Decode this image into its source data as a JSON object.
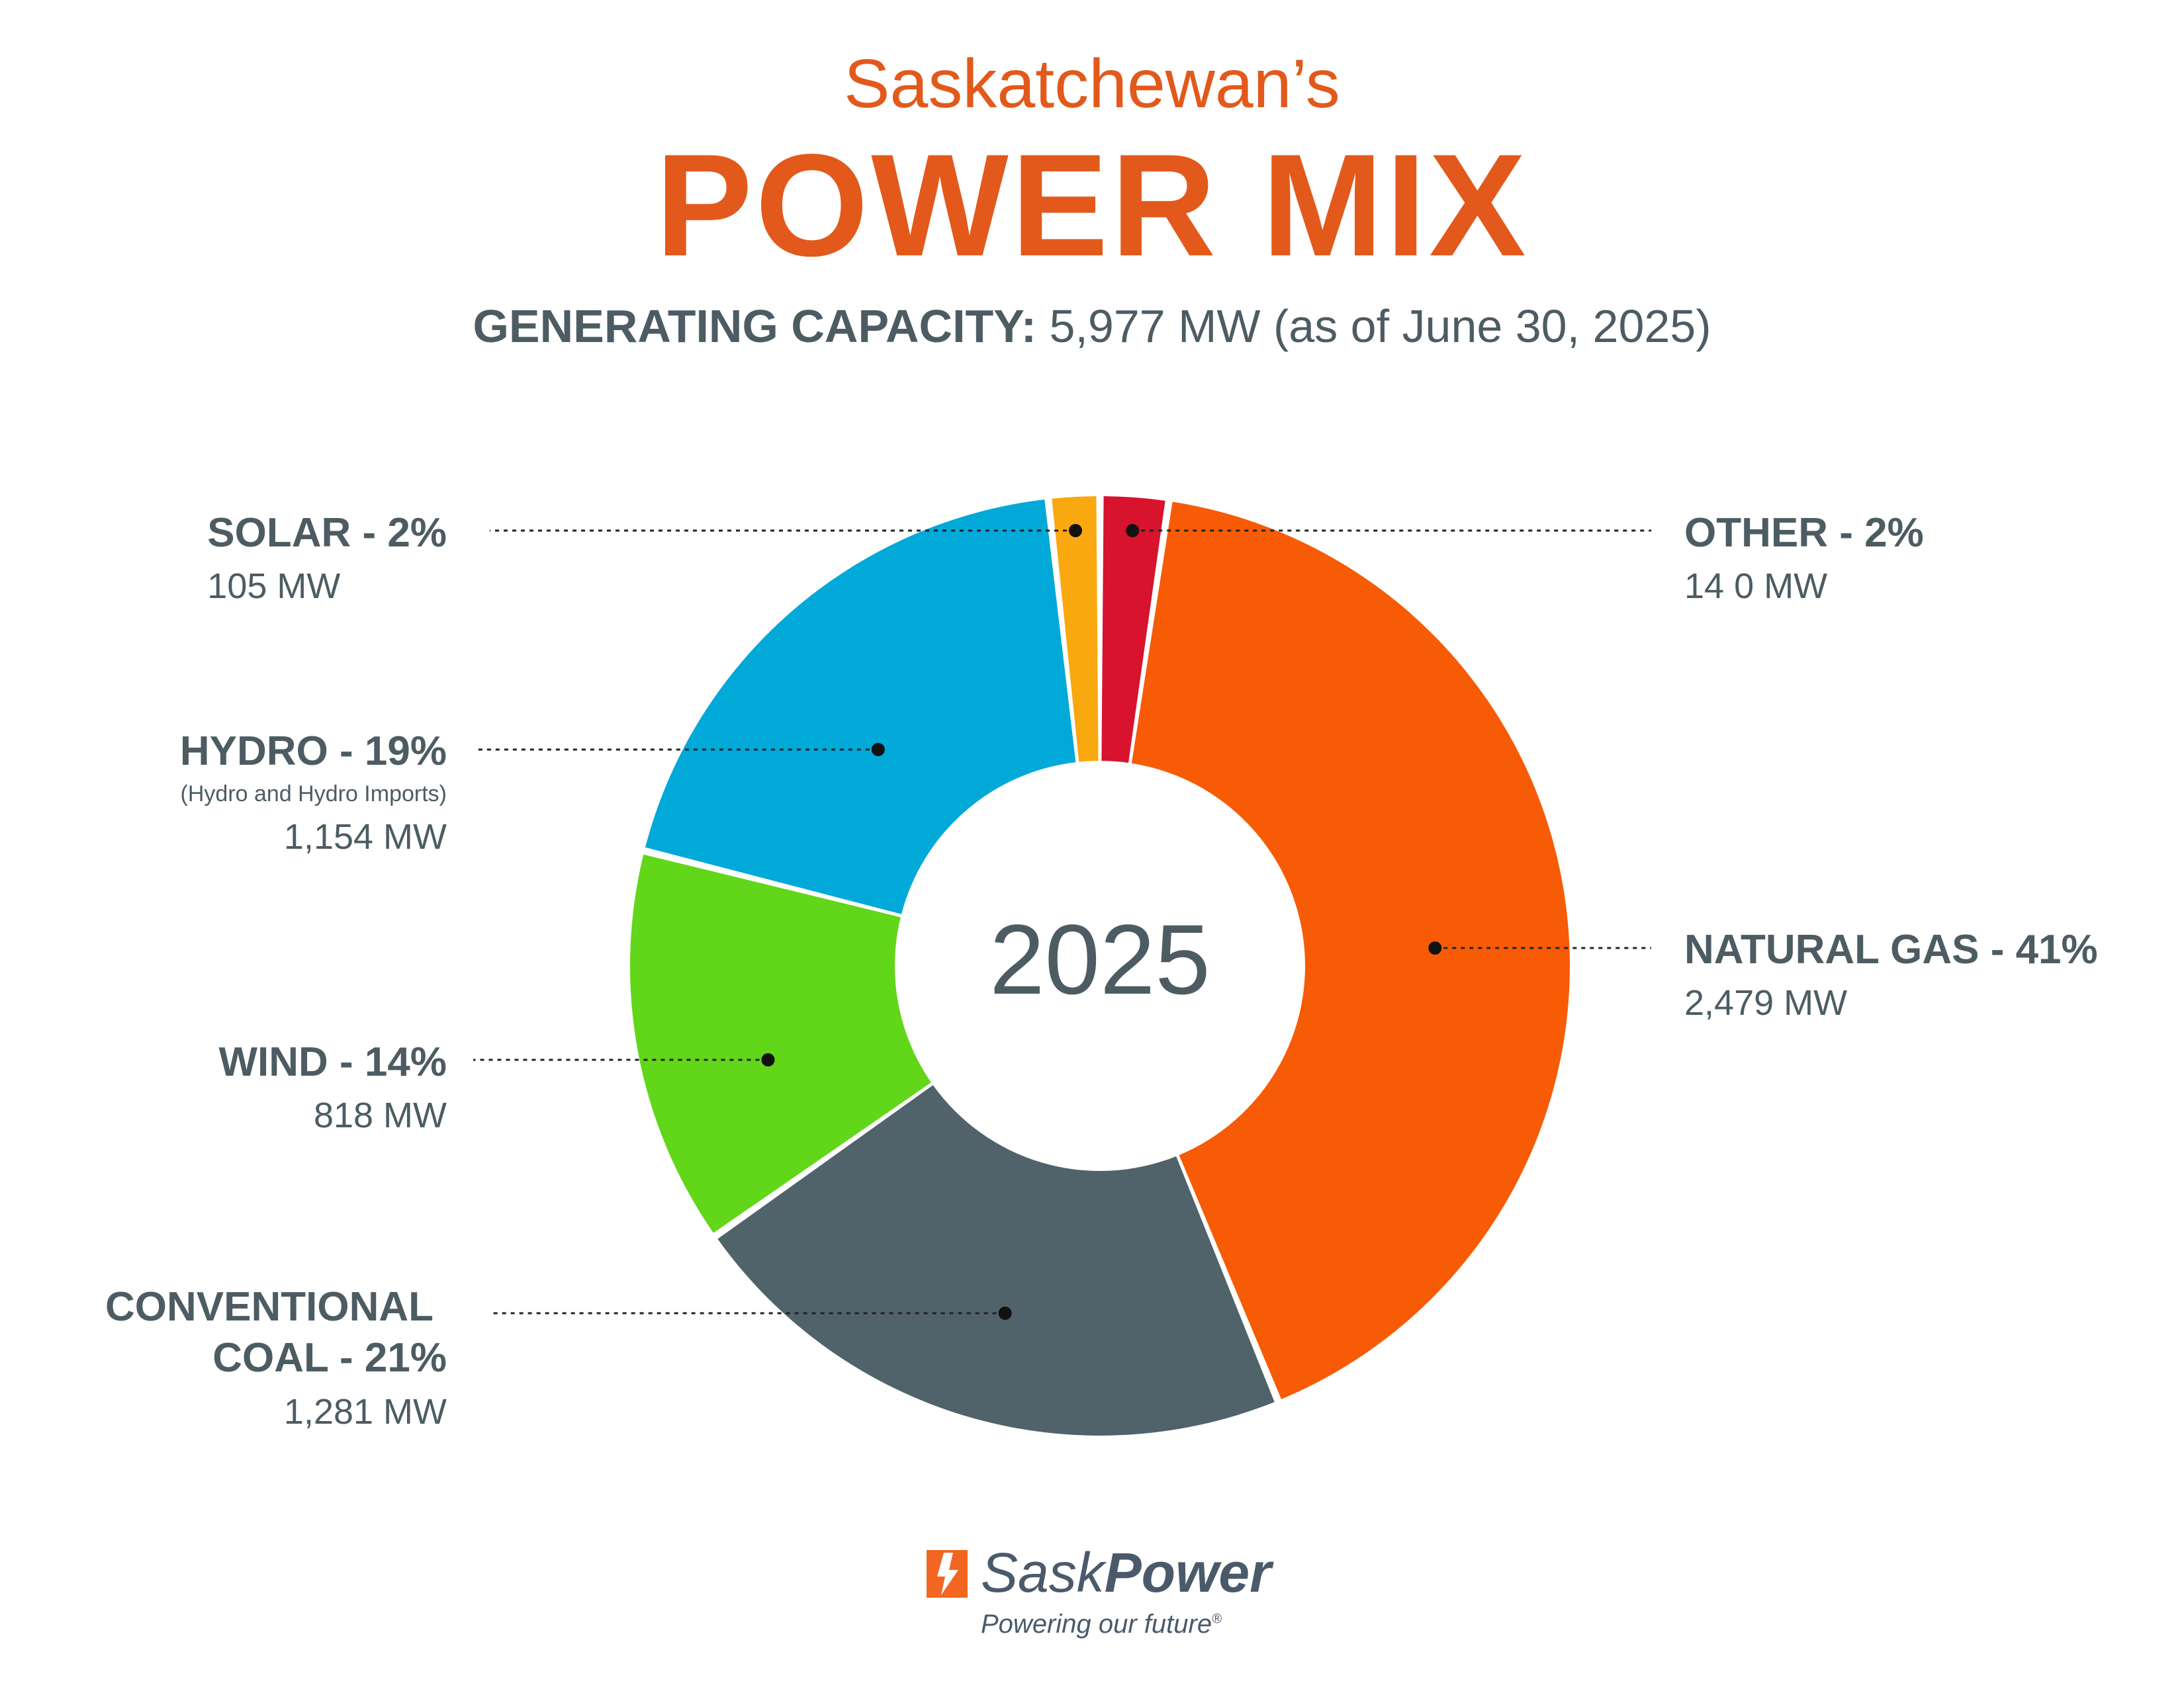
{
  "header": {
    "subtitle": "Saskatchewan’s",
    "title": "POWER MIX",
    "capacity_label": "GENERATING CAPACITY:",
    "capacity_value": "5,977 MW (as of June 30, 2025)"
  },
  "chart_data": {
    "type": "pie",
    "title": "POWER MIX",
    "center_label": "2025",
    "categories": [
      "OTHER",
      "NATURAL GAS",
      "CONVENTIONAL COAL",
      "WIND",
      "HYDRO",
      "SOLAR"
    ],
    "values": [
      140,
      2479,
      1281,
      818,
      1154,
      105
    ],
    "units": "MW",
    "slices": [
      {
        "name": "OTHER",
        "label": "OTHER - 2%",
        "value": 140,
        "percent": 2,
        "mw_text": "14 0 MW",
        "color": "#d7132e",
        "note": ""
      },
      {
        "name": "NATURAL GAS",
        "label": "NATURAL GAS - 41%",
        "value": 2479,
        "percent": 41,
        "mw_text": "2,479 MW",
        "color": "#f75b06",
        "note": ""
      },
      {
        "name": "CONVENTIONAL COAL",
        "label_line1": "CONVENTIONAL",
        "label_line2": "COAL - 21%",
        "value": 1281,
        "percent": 21,
        "mw_text": "1,281 MW",
        "color": "#50626a",
        "note": ""
      },
      {
        "name": "WIND",
        "label": "WIND - 14%",
        "value": 818,
        "percent": 14,
        "mw_text": "818 MW",
        "color": "#62d618",
        "note": ""
      },
      {
        "name": "HYDRO",
        "label": "HYDRO - 19%",
        "value": 1154,
        "percent": 19,
        "mw_text": "1,154 MW",
        "color": "#00a9d8",
        "note": "(Hydro and Hydro Imports)"
      },
      {
        "name": "SOLAR",
        "label": "SOLAR - 2%",
        "value": 105,
        "percent": 2,
        "mw_text": "105 MW",
        "color": "#f9a80f",
        "note": ""
      }
    ]
  },
  "footer": {
    "brand_part1": "Sask",
    "brand_part2": "Power",
    "tagline": "Powering our future",
    "registered": "®"
  },
  "colors": {
    "accent": "#e2591b",
    "text": "#4d5c63"
  }
}
